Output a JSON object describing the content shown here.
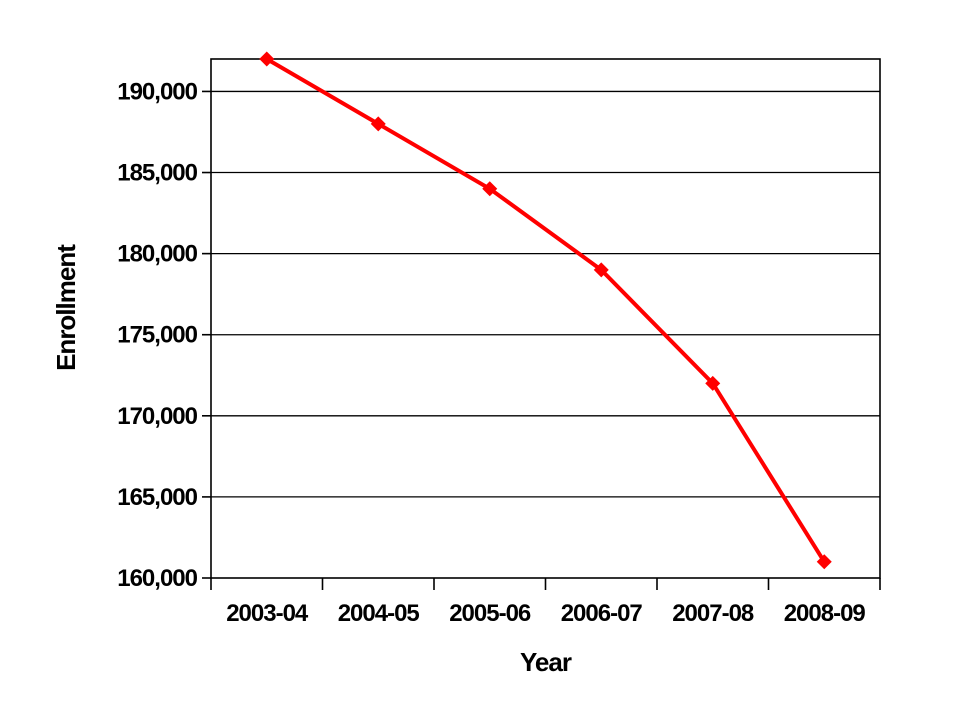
{
  "page": {
    "background_color": "#ffffff",
    "text_color": "#000000"
  },
  "chart_data": {
    "type": "line",
    "title": "",
    "xlabel": "Year",
    "ylabel": "Enrollment",
    "categories": [
      "2003-04",
      "2004-05",
      "2005-06",
      "2006-07",
      "2007-08",
      "2008-09"
    ],
    "series": [
      {
        "name": "Enrollment",
        "values": [
          192000,
          188000,
          184000,
          179000,
          172000,
          161000
        ],
        "color": "#ff0000",
        "marker": "diamond"
      }
    ],
    "ylim": [
      160000,
      192000
    ],
    "ytick_interval": 5000,
    "ytick_labels": [
      "160,000",
      "165,000",
      "170,000",
      "175,000",
      "180,000",
      "185,000",
      "190,000"
    ],
    "grid": true,
    "legend_position": "none",
    "grid_color": "#000000",
    "axis_color": "#000000",
    "plot_background": "#ffffff"
  }
}
